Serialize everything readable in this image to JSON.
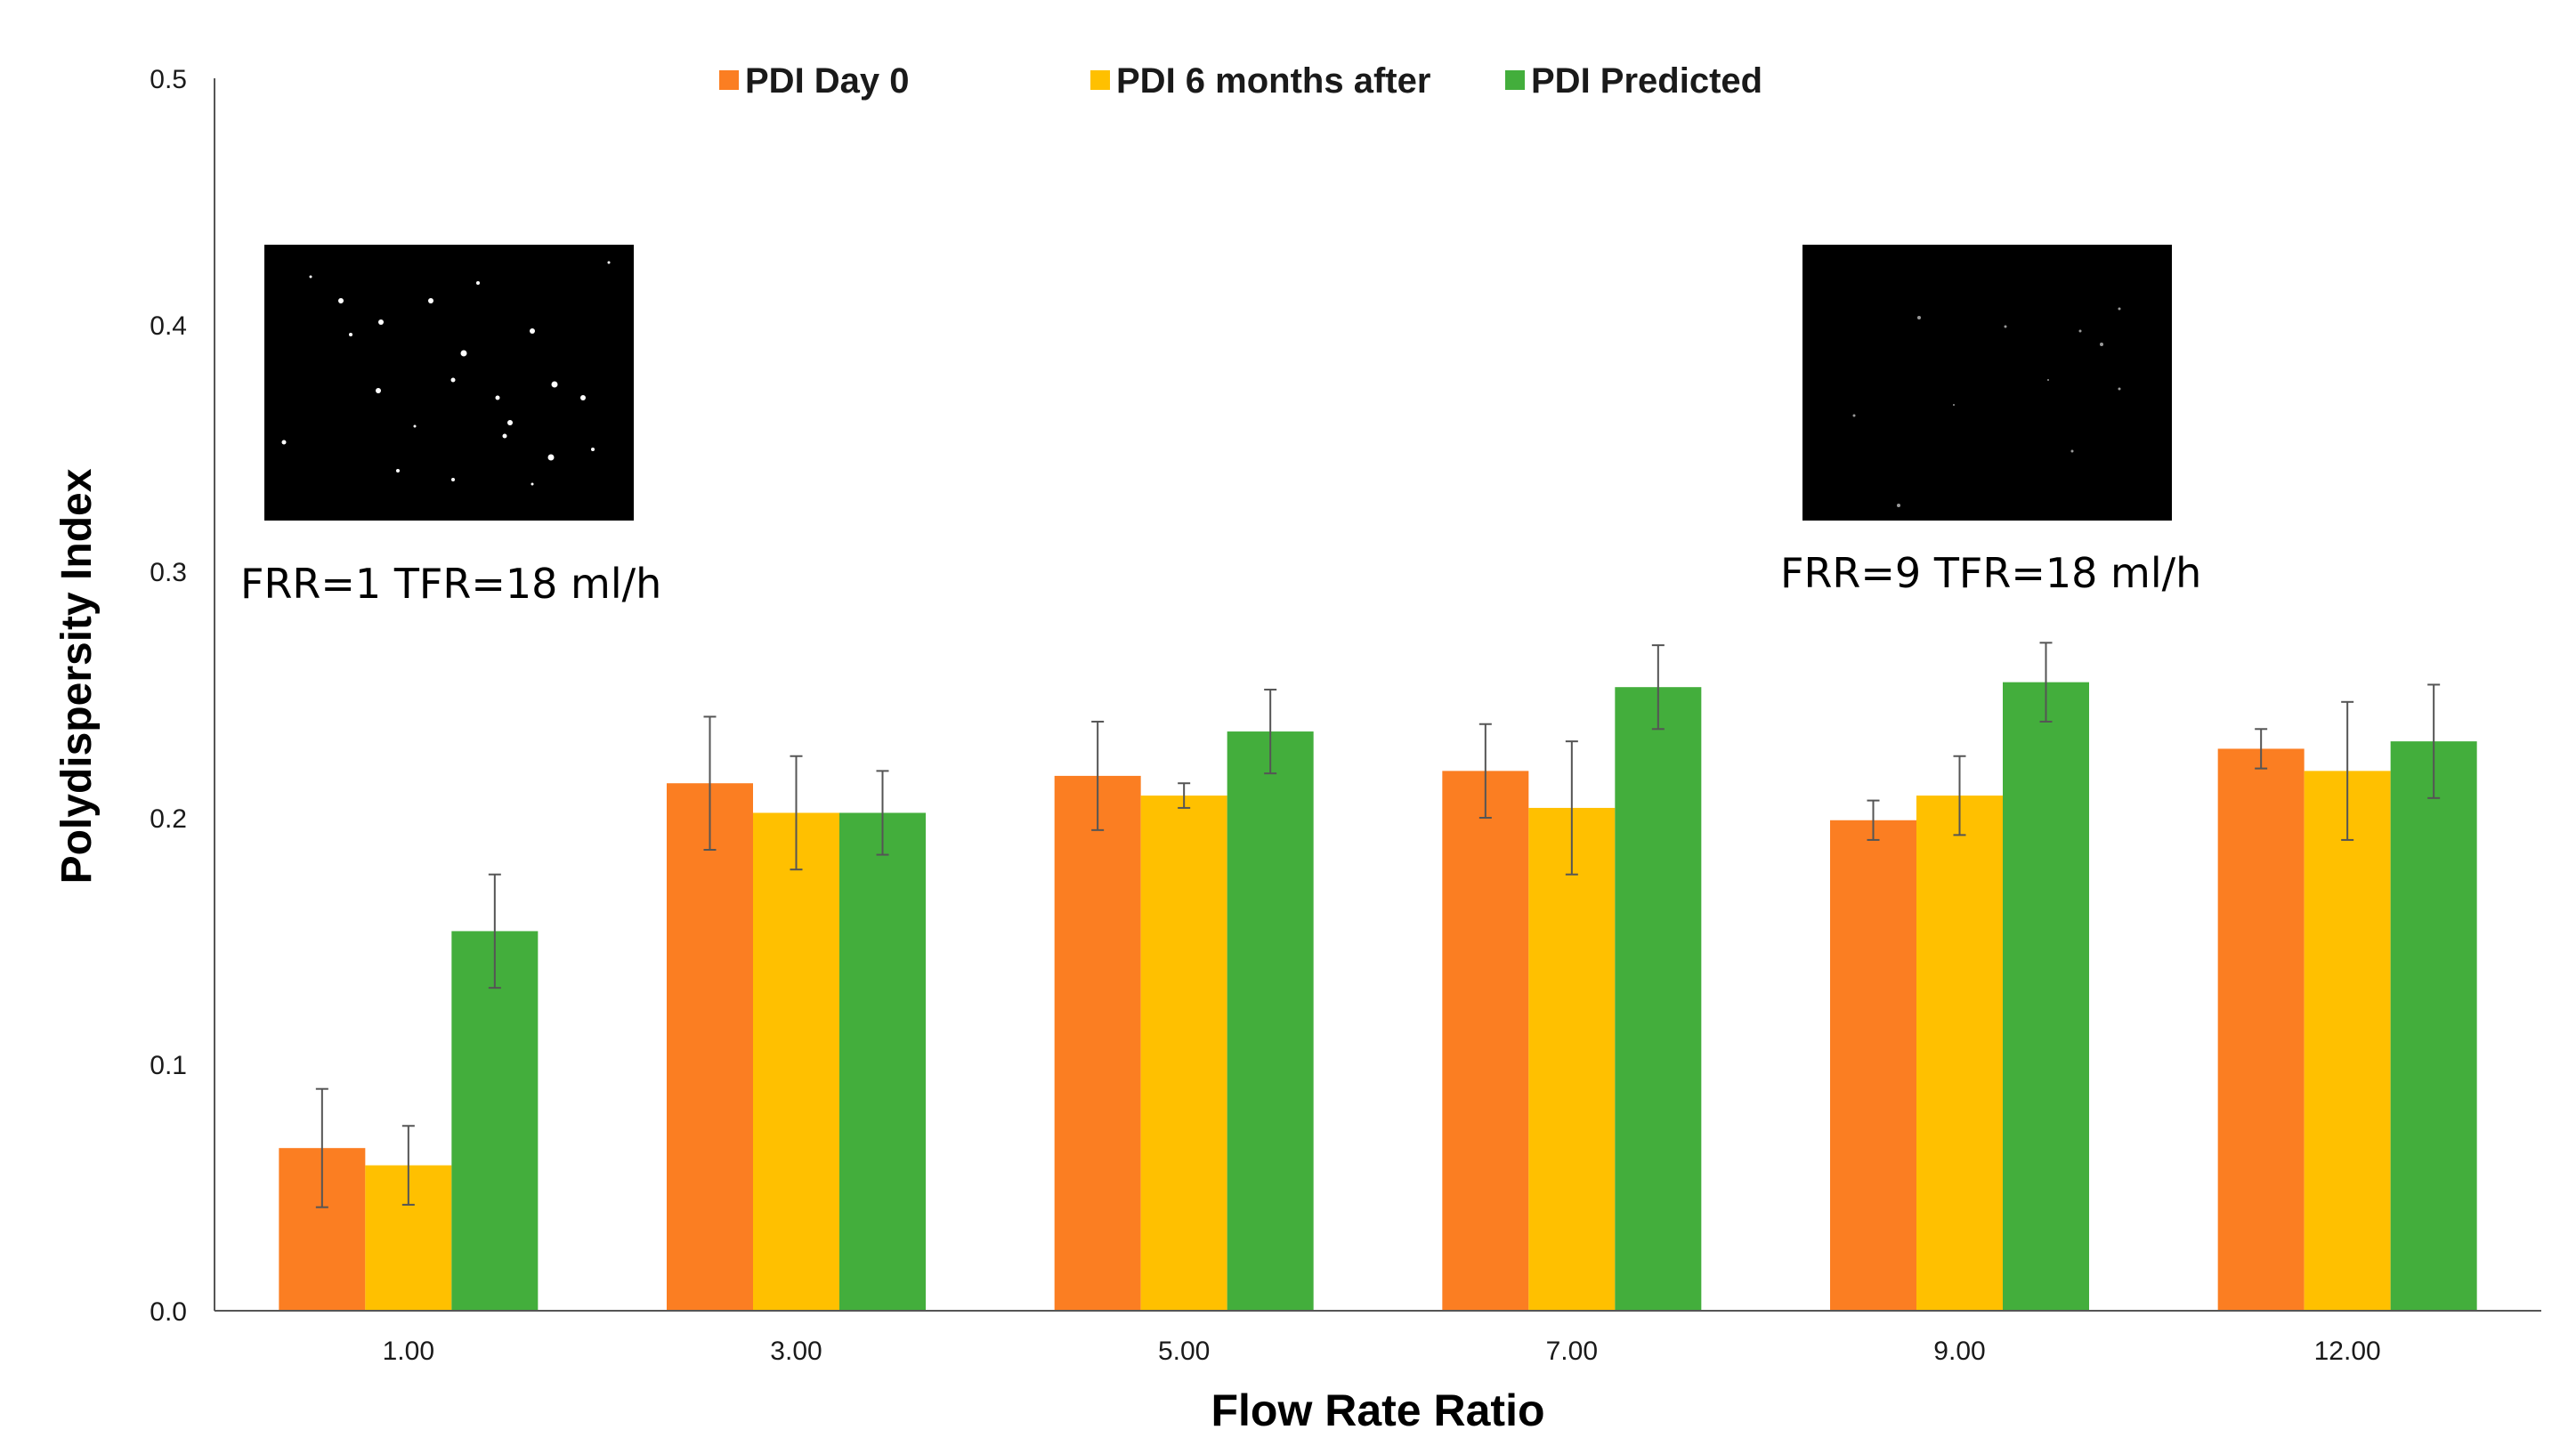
{
  "chart_data": {
    "type": "bar",
    "xlabel": "Flow Rate Ratio",
    "ylabel": "Polydispersity Index",
    "ylim": [
      0,
      0.5
    ],
    "yticks": [
      "0.0",
      "0.1",
      "0.2",
      "0.3",
      "0.4",
      "0.5"
    ],
    "categories": [
      "1.00",
      "3.00",
      "5.00",
      "7.00",
      "9.00",
      "12.00"
    ],
    "series": [
      {
        "name": "PDI Day 0",
        "color": "#fb7e22",
        "values": [
          0.066,
          0.214,
          0.217,
          0.219,
          0.199,
          0.228
        ],
        "errors": [
          0.024,
          0.027,
          0.022,
          0.019,
          0.008,
          0.008
        ]
      },
      {
        "name": "PDI 6 months after",
        "color": "#ffc000",
        "values": [
          0.059,
          0.202,
          0.209,
          0.204,
          0.209,
          0.219
        ],
        "errors": [
          0.016,
          0.023,
          0.005,
          0.027,
          0.016,
          0.028
        ]
      },
      {
        "name": "PDI Predicted",
        "color": "#43ae3c",
        "values": [
          0.154,
          0.202,
          0.235,
          0.253,
          0.255,
          0.231
        ],
        "errors": [
          0.023,
          0.017,
          0.017,
          0.017,
          0.016,
          0.023
        ]
      }
    ],
    "legend_position": "top-center",
    "grid": false,
    "insets": [
      {
        "label": "FRR=1 TFR=18 ml/h",
        "kind": "dark microscopy image, many bright dots"
      },
      {
        "label": "FRR=9 TFR=18 ml/h",
        "kind": "dark microscopy image, few faint dots"
      }
    ]
  }
}
